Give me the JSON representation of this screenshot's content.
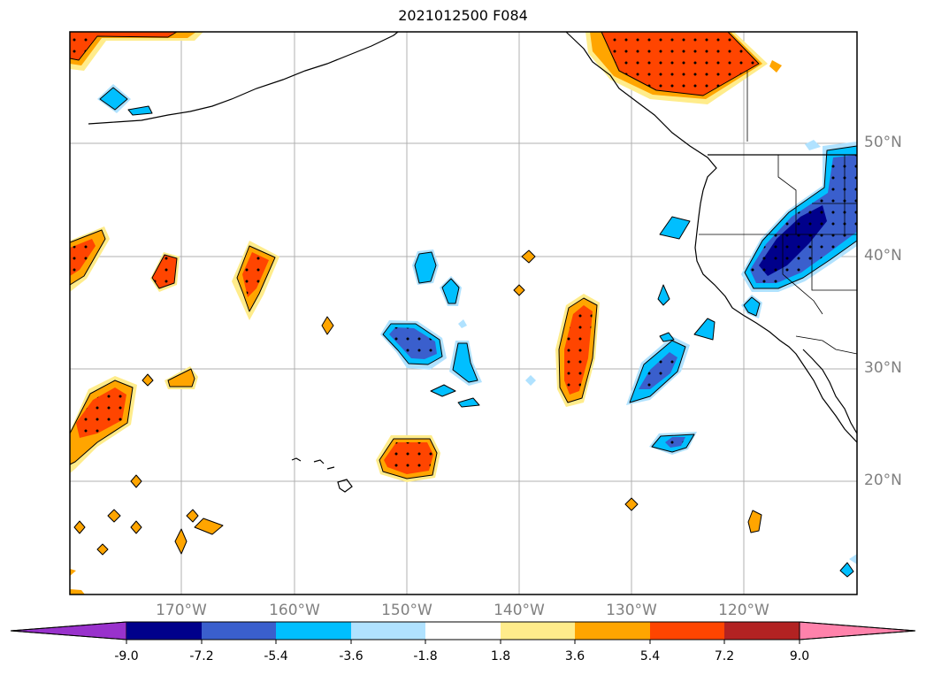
{
  "title": "2021012500 F084",
  "lat_labels": [
    "50°N",
    "40°N",
    "30°N",
    "20°N"
  ],
  "lon_labels": [
    "170°W",
    "160°W",
    "150°W",
    "140°W",
    "130°W",
    "120°W"
  ],
  "colorbar": {
    "tick_labels": [
      "-9.0",
      "-7.2",
      "-5.4",
      "-3.6",
      "-1.8",
      "1.8",
      "3.6",
      "5.4",
      "7.2",
      "9.0"
    ],
    "colors": [
      "#9932cc",
      "#00008b",
      "#3a5fcd",
      "#00bfff",
      "#b0e2ff",
      "#ffffff",
      "#ffec8b",
      "#ffa500",
      "#ff4500",
      "#b22222",
      "#ff82ab"
    ]
  },
  "colors": {
    "frame": "#000000",
    "grid": "#b0b0b0",
    "coast": "#000000",
    "stipple": "#000000"
  }
}
